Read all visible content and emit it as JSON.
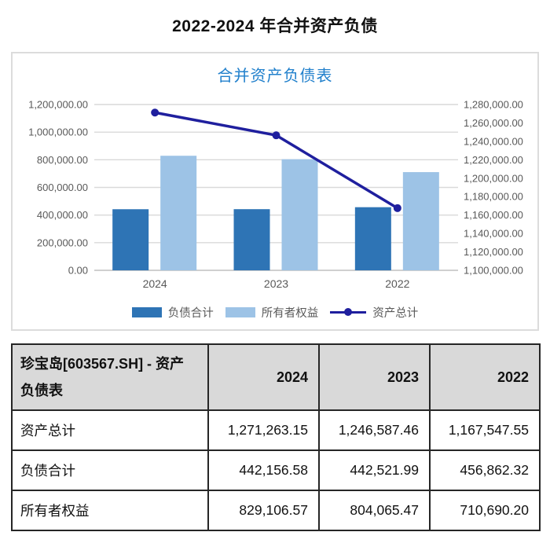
{
  "page_title": "2022-2024 年合并资产负债",
  "chart_data": {
    "type": "bar",
    "title": "合并资产负债表",
    "categories": [
      "2024",
      "2023",
      "2022"
    ],
    "series": [
      {
        "name": "负债合计",
        "render": "bar",
        "axis": "left",
        "color": "#2E74B5",
        "values": [
          442156.58,
          442521.99,
          456862.32
        ]
      },
      {
        "name": "所有者权益",
        "render": "bar",
        "axis": "left",
        "color": "#9DC3E6",
        "values": [
          829106.57,
          804065.47,
          710690.2
        ]
      },
      {
        "name": "资产总计",
        "render": "line",
        "axis": "right",
        "color": "#1F1F9E",
        "values": [
          1271263.15,
          1246587.46,
          1167547.55
        ]
      }
    ],
    "left_axis": {
      "min": 0,
      "max": 1200000,
      "step": 200000,
      "ticks": [
        "1,200,000.00",
        "1,000,000.00",
        "800,000.00",
        "600,000.00",
        "400,000.00",
        "200,000.00",
        "0.00"
      ]
    },
    "right_axis": {
      "min": 1100000,
      "max": 1280000,
      "step": 20000,
      "ticks": [
        "1,280,000.00",
        "1,260,000.00",
        "1,240,000.00",
        "1,220,000.00",
        "1,200,000.00",
        "1,180,000.00",
        "1,160,000.00",
        "1,140,000.00",
        "1,120,000.00",
        "1,100,000.00"
      ]
    },
    "grid": true,
    "legend_position": "bottom",
    "colors": {
      "grid": "#D9D9D9",
      "axis_line": "#BFBFBF",
      "tick_text": "#595959",
      "title_text": "#2180CC"
    }
  },
  "table": {
    "header": {
      "title": "珍宝岛[603567.SH] - 资产负债表",
      "columns": [
        "2024",
        "2023",
        "2022"
      ]
    },
    "rows": [
      {
        "label": "资产总计",
        "values": [
          "1,271,263.15",
          "1,246,587.46",
          "1,167,547.55"
        ]
      },
      {
        "label": "负债合计",
        "values": [
          "442,156.58",
          "442,521.99",
          "456,862.32"
        ]
      },
      {
        "label": "所有者权益",
        "values": [
          "829,106.57",
          "804,065.47",
          "710,690.20"
        ]
      }
    ]
  }
}
